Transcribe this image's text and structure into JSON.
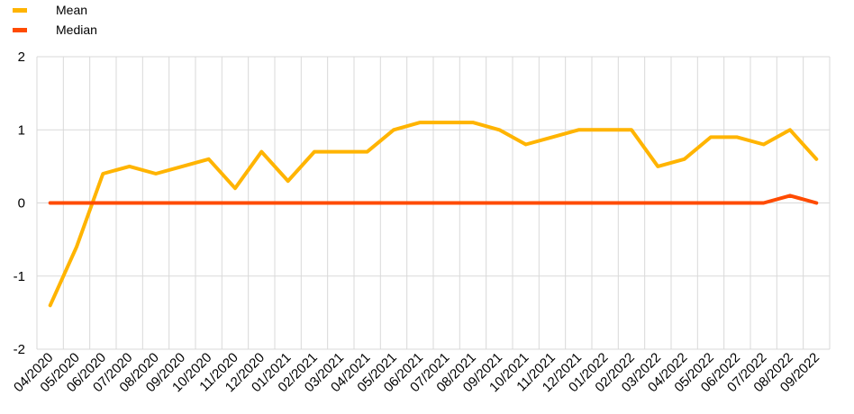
{
  "chart_data": {
    "type": "line",
    "title": "",
    "xlabel": "",
    "ylabel": "",
    "ylim": [
      -2,
      2
    ],
    "y_ticks": [
      "2",
      "1",
      "0",
      "-1",
      "-2"
    ],
    "y_tick_values": [
      2,
      1,
      0,
      -1,
      -2
    ],
    "grid": true,
    "legend_position": "top-left",
    "x_tick_labels": [
      "04/2020",
      "05/2020",
      "06/2020",
      "07/2020",
      "08/2020",
      "09/2020",
      "10/2020",
      "11/2020",
      "12/2020",
      "01/2021",
      "02/2021",
      "03/2021",
      "04/2021",
      "05/2021",
      "06/2021",
      "07/2021",
      "08/2021",
      "09/2021",
      "10/2021",
      "11/2021",
      "12/2021",
      "01/2022",
      "02/2022",
      "03/2022",
      "04/2022",
      "05/2022",
      "06/2022",
      "07/2022",
      "08/2022",
      "09/2022"
    ],
    "x": [
      "04/2020",
      "05/2020",
      "06/2020",
      "07/2020",
      "08/2020",
      "09/2020",
      "10/2020",
      "11/2020",
      "12/2020",
      "01/2021",
      "02/2021",
      "03/2021",
      "04/2021",
      "05/2021",
      "06/2021",
      "07/2021",
      "08/2021",
      "09/2021",
      "10/2021",
      "11/2021",
      "12/2021",
      "01/2022",
      "02/2022",
      "03/2022",
      "04/2022",
      "05/2022",
      "06/2022",
      "07/2022",
      "08/2022",
      "09/2022"
    ],
    "series": [
      {
        "name": "Mean",
        "color": "#FFB400",
        "values": [
          -1.4,
          -0.6,
          0.4,
          0.5,
          0.4,
          0.5,
          0.6,
          0.2,
          0.7,
          0.3,
          0.7,
          0.7,
          0.7,
          1.0,
          1.1,
          1.1,
          1.1,
          1.0,
          0.8,
          0.9,
          1.0,
          1.0,
          1.0,
          0.5,
          0.6,
          0.9,
          0.9,
          0.8,
          1.0,
          0.6
        ]
      },
      {
        "name": "Median",
        "color": "#FF4B00",
        "values": [
          0,
          0,
          0,
          0,
          0,
          0,
          0,
          0,
          0,
          0,
          0,
          0,
          0,
          0,
          0,
          0,
          0,
          0,
          0,
          0,
          0,
          0,
          0,
          0,
          0,
          0,
          0,
          0,
          0.1,
          0
        ]
      }
    ]
  }
}
